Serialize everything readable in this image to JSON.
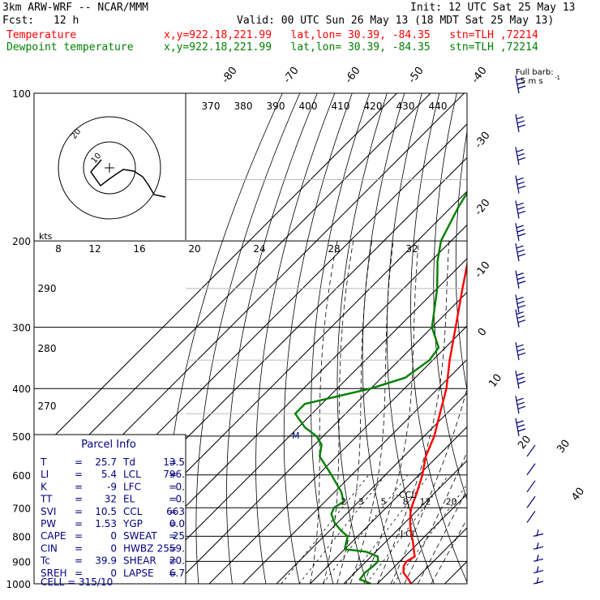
{
  "header": {
    "model": "3km ARW-WRF -- NCAR/MMM",
    "init": "Init: 12 UTC Sat 25 May 13",
    "fcst_label": "Fcst:",
    "fcst_value": "12 h",
    "valid": "Valid: 00 UTC Sun 26 May 13 (18 MDT Sat 25 May 13)",
    "temp_label": "Temperature",
    "temp_info": "x,y=922.18,221.99   lat,lon= 30.39, -84.35   stn=TLH ,72214",
    "dew_label": "Dewpoint temperature",
    "dew_info": "x,y=922.18,221.99   lat,lon= 30.39, -84.35   stn=TLH ,72214"
  },
  "colors": {
    "temperature": "#ff0000",
    "dewpoint": "#008000",
    "wind": "#000080",
    "grid": "#000000"
  },
  "hodograph": {
    "kts_label": "kts",
    "ring_labels": [
      "10",
      "20"
    ]
  },
  "wind_legend": {
    "title": "Full barb:",
    "value": "5 m s",
    "sup": "-1"
  },
  "parcel": {
    "title": "Parcel Info",
    "rows": [
      {
        "l1": "T",
        "v1": "25.7",
        "l2": "Td",
        "v2": "13.5"
      },
      {
        "l1": "LI",
        "v1": "5.4",
        "l2": "LCL",
        "v2": "796."
      },
      {
        "l1": "K",
        "v1": "-9",
        "l2": "LFC",
        "v2": "0."
      },
      {
        "l1": "TT",
        "v1": "32",
        "l2": "EL",
        "v2": "0."
      },
      {
        "l1": "SVI",
        "v1": "10.5",
        "l2": "CCL",
        "v2": "663"
      },
      {
        "l1": "PW",
        "v1": "1.53",
        "l2": "YGP",
        "v2": "0.0"
      },
      {
        "l1": "CAPE",
        "v1": "0",
        "l2": "SWEAT",
        "v2": "25"
      },
      {
        "l1": "CIN",
        "v1": "0",
        "l2": "HWBZ",
        "v2": "2559."
      },
      {
        "l1": "Tc",
        "v1": "39.9",
        "l2": "SHEAR",
        "v2": "20."
      },
      {
        "l1": "SREH",
        "v1": "0",
        "l2": "LAPSE",
        "v2": "6.7"
      }
    ],
    "cell": "CELL = 315/10"
  },
  "chart_data": {
    "type": "line",
    "title": "",
    "ylabel_values": [
      "100",
      "200",
      "300",
      "400",
      "500",
      "600",
      "700",
      "800",
      "900",
      "1000"
    ],
    "y_pressure": [
      100,
      200,
      300,
      400,
      500,
      600,
      700,
      800,
      900,
      1000
    ],
    "isotherm_labels": [
      "-80",
      "-70",
      "-60",
      "-50",
      "-40",
      "-30",
      "-20",
      "-10",
      "0",
      "10",
      "20",
      "30",
      "40"
    ],
    "theta_labels": [
      "370",
      "380",
      "390",
      "400",
      "410",
      "420",
      "430",
      "440"
    ],
    "wind_speed_labels": [
      "8",
      "12",
      "16",
      "20",
      "24",
      "28",
      "32"
    ],
    "left_theta_labels": [
      "290",
      "280",
      "270"
    ],
    "mixing_ratio_labels": [
      "2",
      "3",
      "5",
      "8",
      "12",
      "20"
    ],
    "annotations": [
      "CCL",
      "LCL",
      "M"
    ],
    "series": [
      {
        "name": "Temperature",
        "pressure": [
          1000,
          980,
          950,
          920,
          900,
          880,
          850,
          820,
          800,
          780,
          750,
          720,
          700,
          650,
          600,
          550,
          500,
          450,
          400,
          350,
          300,
          250,
          220,
          200,
          180,
          160,
          140,
          120,
          100
        ],
        "temp_c": [
          30.0,
          28.0,
          24.5,
          22.5,
          22.0,
          23.0,
          20.5,
          18.0,
          16.0,
          14.2,
          11.5,
          9.0,
          7.5,
          4.5,
          1.0,
          -3.5,
          -7.0,
          -12.0,
          -17.5,
          -25.0,
          -33.0,
          -42.5,
          -49.0,
          -53.0,
          -56.5,
          -58.5,
          -59.0,
          -61.5,
          -65.0
        ]
      },
      {
        "name": "Dewpoint temperature",
        "pressure": [
          1000,
          990,
          980,
          950,
          920,
          900,
          880,
          860,
          850,
          800,
          780,
          750,
          720,
          700,
          680,
          650,
          600,
          550,
          520,
          500,
          480,
          450,
          430,
          400,
          380,
          350,
          330,
          300,
          250,
          220,
          200,
          170,
          150,
          120,
          100
        ],
        "temp_c": [
          18.0,
          16.0,
          13.5,
          13.0,
          13.5,
          13.5,
          12.0,
          7.0,
          0.0,
          -3.0,
          -6.5,
          -11.0,
          -14.5,
          -15.5,
          -14.5,
          -18.0,
          -26.0,
          -35.0,
          -38.0,
          -42.0,
          -48.0,
          -55.0,
          -55.0,
          -40.0,
          -33.0,
          -31.0,
          -32.0,
          -40.0,
          -50.0,
          -58.0,
          -63.0,
          -68.0,
          -71.0,
          -75.0,
          -78.0
        ]
      }
    ],
    "wind_profile_pressure": [
      100,
      120,
      140,
      160,
      180,
      200,
      220,
      250,
      280,
      300,
      350,
      400,
      450,
      500,
      550,
      600,
      650,
      700,
      750,
      800,
      850,
      900,
      950,
      1000
    ]
  }
}
